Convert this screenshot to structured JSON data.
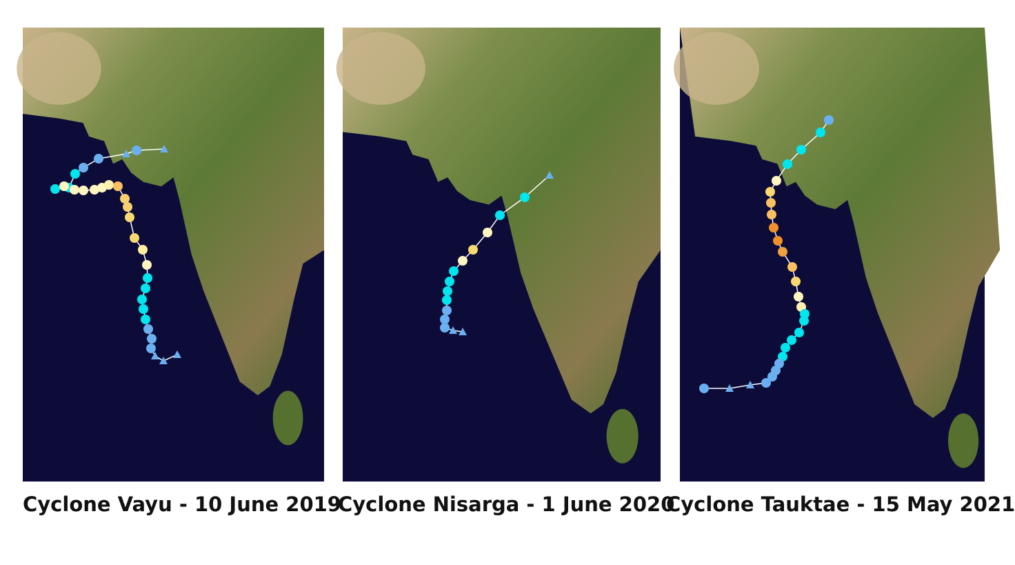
{
  "panels": [
    {
      "caption": "Cyclone Vayu - 10 June 2019"
    },
    {
      "caption": "Cyclone Nisarga - 1 June 2020"
    },
    {
      "caption": "Cyclone Tauktae - 15 May 2021"
    }
  ]
}
